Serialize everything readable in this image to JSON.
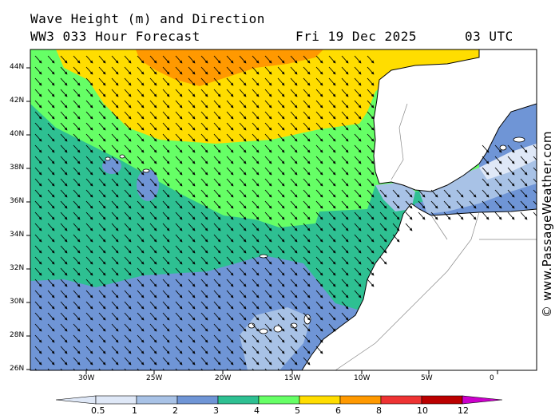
{
  "title": {
    "line1": "Wave Height (m) and Direction",
    "line2": "WW3 033 Hour Forecast",
    "date": "Fri 19 Dec 2025",
    "time": "03 UTC"
  },
  "credit": "© www.PassageWeather.com",
  "map": {
    "lat_labels": [
      "44N",
      "42N",
      "40N",
      "38N",
      "36N",
      "34N",
      "32N",
      "30N",
      "28N",
      "26N"
    ],
    "lon_labels": [
      "30W",
      "25W",
      "20W",
      "15W",
      "10W",
      "5W",
      "0"
    ],
    "colors": {
      "ocean_high": "#ff9900",
      "land": "#ffffff"
    }
  },
  "colorbar": {
    "labels": [
      "0.5",
      "1",
      "2",
      "3",
      "4",
      "5",
      "6",
      "8",
      "10",
      "12"
    ],
    "colors": [
      "#dfe8f7",
      "#a8c2e6",
      "#6f95d6",
      "#2ec092",
      "#66ff66",
      "#ffdd00",
      "#ff9900",
      "#ee3333",
      "#bb0000",
      "#cc00cc"
    ]
  }
}
